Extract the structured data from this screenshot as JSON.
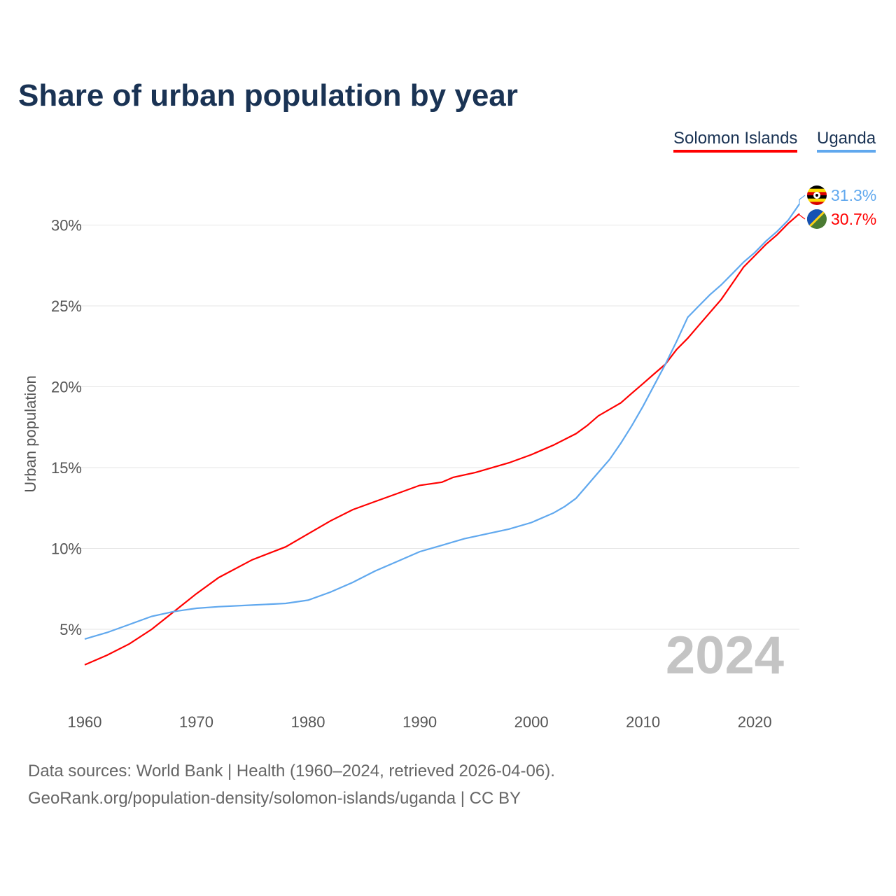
{
  "chart_data": {
    "type": "line",
    "title": "Share of urban population by year",
    "xlabel": "",
    "ylabel": "Urban population",
    "xlim": [
      1960,
      2024
    ],
    "ylim": [
      0,
      32
    ],
    "yticks": [
      5,
      10,
      15,
      20,
      25,
      30
    ],
    "ytick_labels": [
      "5%",
      "10%",
      "15%",
      "20%",
      "25%",
      "30%"
    ],
    "xticks": [
      1960,
      1970,
      1980,
      1990,
      2000,
      2010,
      2020
    ],
    "xtick_labels": [
      "1960",
      "1970",
      "1980",
      "1990",
      "2000",
      "2010",
      "2020"
    ],
    "grid": true,
    "legend_position": "top-right",
    "year_watermark": "2024",
    "series": [
      {
        "name": "Solomon Islands",
        "color": "#ff0000",
        "end_label": "30.7%",
        "x": [
          1960,
          1962,
          1964,
          1966,
          1968,
          1970,
          1972,
          1975,
          1978,
          1980,
          1982,
          1984,
          1986,
          1988,
          1990,
          1992,
          1993,
          1995,
          1998,
          2000,
          2002,
          2004,
          2005,
          2006,
          2008,
          2009,
          2010,
          2011,
          2012,
          2013,
          2014,
          2015,
          2016,
          2017,
          2018,
          2019,
          2020,
          2021,
          2022,
          2023,
          2024
        ],
        "values": [
          2.8,
          3.4,
          4.1,
          5.0,
          6.1,
          7.2,
          8.2,
          9.3,
          10.1,
          10.9,
          11.7,
          12.4,
          12.9,
          13.4,
          13.9,
          14.1,
          14.4,
          14.7,
          15.3,
          15.8,
          16.4,
          17.1,
          17.6,
          18.2,
          19.0,
          19.6,
          20.2,
          20.8,
          21.4,
          22.3,
          23.0,
          23.8,
          24.6,
          25.4,
          26.4,
          27.4,
          28.1,
          28.8,
          29.4,
          30.1,
          30.7
        ]
      },
      {
        "name": "Uganda",
        "color": "#60a8ee",
        "end_label": "31.3%",
        "x": [
          1960,
          1962,
          1964,
          1966,
          1968,
          1970,
          1972,
          1975,
          1978,
          1980,
          1982,
          1984,
          1986,
          1988,
          1990,
          1992,
          1994,
          1996,
          1998,
          2000,
          2002,
          2003,
          2004,
          2005,
          2006,
          2007,
          2008,
          2009,
          2010,
          2011,
          2012,
          2013,
          2014,
          2015,
          2016,
          2017,
          2018,
          2019,
          2020,
          2021,
          2022,
          2023,
          2024
        ],
        "values": [
          4.4,
          4.8,
          5.3,
          5.8,
          6.1,
          6.3,
          6.4,
          6.5,
          6.6,
          6.8,
          7.3,
          7.9,
          8.6,
          9.2,
          9.8,
          10.2,
          10.6,
          10.9,
          11.2,
          11.6,
          12.2,
          12.6,
          13.1,
          13.9,
          14.7,
          15.5,
          16.5,
          17.6,
          18.8,
          20.1,
          21.4,
          22.8,
          24.3,
          25.0,
          25.7,
          26.3,
          27.0,
          27.7,
          28.3,
          29.0,
          29.6,
          30.3,
          31.3
        ]
      }
    ]
  },
  "footer": {
    "line1": "Data sources: World Bank | Health (1960–2024, retrieved 2026-04-06).",
    "line2": "GeoRank.org/population-density/solomon-islands/uganda | CC BY"
  }
}
